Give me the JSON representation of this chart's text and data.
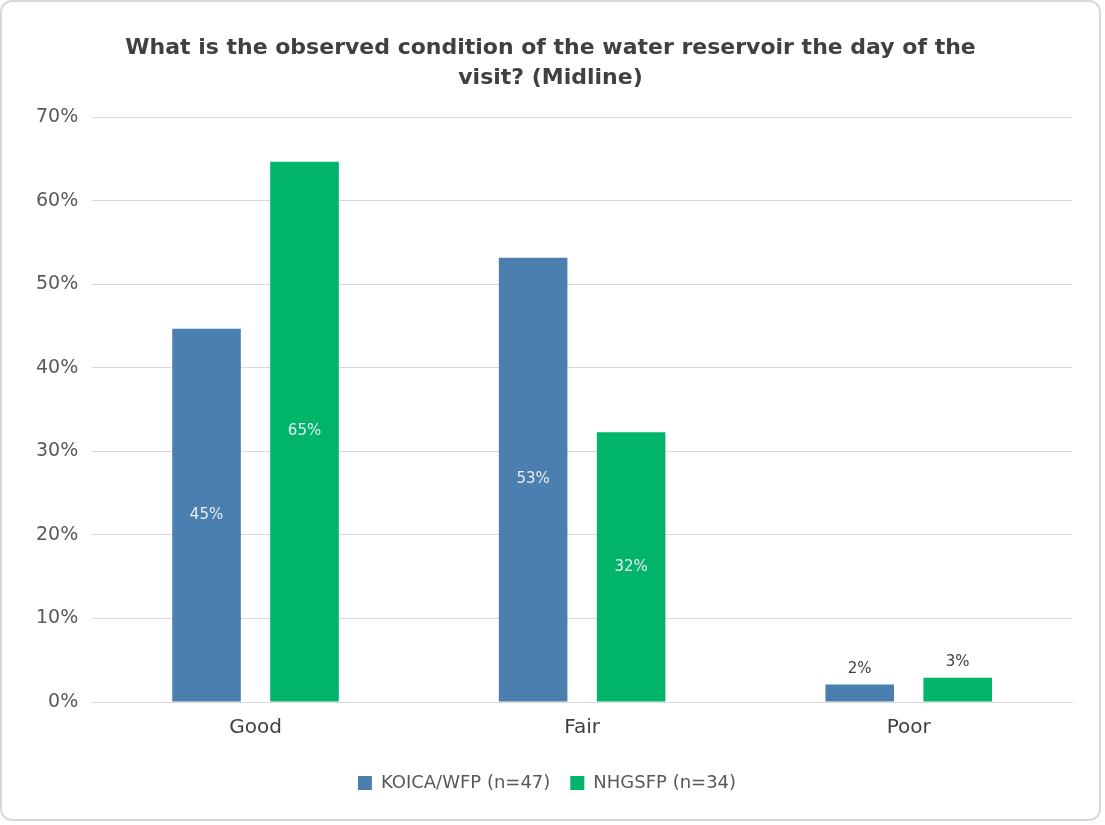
{
  "chart_data": {
    "type": "bar",
    "title": "What is the observed condition of the water reservoir the day of the visit? (Midline)",
    "categories": [
      "Good",
      "Fair",
      "Poor"
    ],
    "series": [
      {
        "name": "KOICA/WFP (n=47)",
        "color": "#4a7fb0",
        "values": [
          44.7,
          53.2,
          2.1
        ],
        "value_labels": [
          "45%",
          "53%",
          "2%"
        ]
      },
      {
        "name": "NHGSFP (n=34)",
        "color": "#00b469",
        "values": [
          64.7,
          32.3,
          2.9
        ],
        "value_labels": [
          "65%",
          "32%",
          "3%"
        ]
      }
    ],
    "ylim": [
      0,
      70
    ],
    "yticks": [
      {
        "value": 0,
        "label": "0%"
      },
      {
        "value": 10,
        "label": "10%"
      },
      {
        "value": 20,
        "label": "20%"
      },
      {
        "value": 30,
        "label": "30%"
      },
      {
        "value": 40,
        "label": "40%"
      },
      {
        "value": 50,
        "label": "50%"
      },
      {
        "value": 60,
        "label": "60%"
      },
      {
        "value": 70,
        "label": "70%"
      }
    ],
    "grid": "y",
    "legend": "bottom"
  }
}
